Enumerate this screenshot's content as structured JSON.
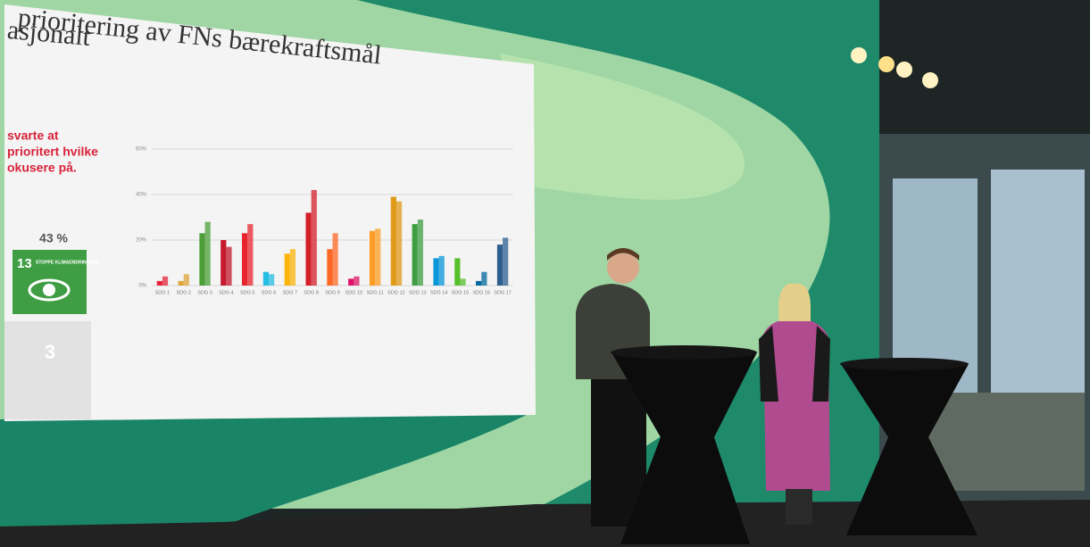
{
  "slide": {
    "title_line1": "prioritering av FNs bærekraftsmål",
    "title_line2": "asjonalt",
    "lead": [
      "svarte at",
      "prioritert hvilke",
      "okusere på."
    ],
    "percent": "43 %",
    "goal_number": "13",
    "goal_name": "STOPPE KLIMAENDRINGENE",
    "next_number": "3"
  },
  "chart_data": {
    "type": "bar",
    "categories": [
      "SDG 1",
      "SDG 2",
      "SDG 3",
      "SDG 4",
      "SDG 5",
      "SDG 6",
      "SDG 7",
      "SDG 8",
      "SDG 9",
      "SDG 10",
      "SDG 11",
      "SDG 12",
      "SDG 13",
      "SDG 14",
      "SDG 15",
      "SDG 16",
      "SDG 17"
    ],
    "colors": [
      "#e5243b",
      "#dda63a",
      "#4c9f38",
      "#c5192d",
      "#e8242f",
      "#26bde2",
      "#fcb40b",
      "#d41f2a",
      "#fd6925",
      "#dd1367",
      "#fd9d24",
      "#e09a1a",
      "#3f9e44",
      "#0a97d9",
      "#56c02b",
      "#00689d",
      "#2f5f8f"
    ],
    "series": [
      {
        "values": [
          2,
          2,
          23,
          20,
          23,
          6,
          14,
          32,
          16,
          3,
          24,
          39,
          27,
          12,
          12,
          2,
          18
        ]
      },
      {
        "values": [
          4,
          5,
          28,
          17,
          27,
          5,
          16,
          42,
          23,
          4,
          25,
          37,
          29,
          13,
          3,
          6,
          21
        ]
      }
    ],
    "ylim": [
      0,
      60
    ],
    "yticks": [
      {
        "value": 0,
        "label": "0%"
      },
      {
        "value": 20,
        "label": "20%"
      },
      {
        "value": 40,
        "label": "40%"
      },
      {
        "value": 60,
        "label": "60%"
      }
    ],
    "grid": true
  }
}
